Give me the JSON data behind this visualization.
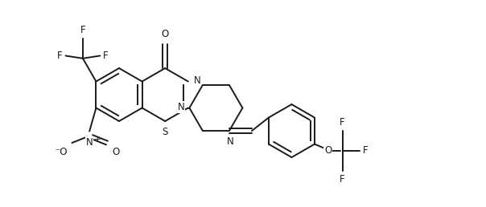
{
  "bg_color": "#ffffff",
  "line_color": "#1a1a1a",
  "line_width": 1.4,
  "font_size": 8.5,
  "figsize": [
    6.04,
    2.58
  ],
  "dpi": 100,
  "xlim": [
    0,
    604
  ],
  "ylim": [
    0,
    258
  ]
}
